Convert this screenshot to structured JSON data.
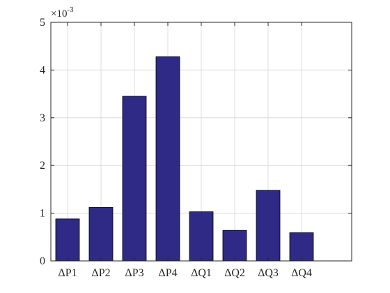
{
  "chart_data": {
    "type": "bar",
    "categories": [
      "ΔP1",
      "ΔP2",
      "ΔP3",
      "ΔP4",
      "ΔQ1",
      "ΔQ2",
      "ΔQ3",
      "ΔQ4"
    ],
    "values": [
      0.00088,
      0.00112,
      0.00345,
      0.00428,
      0.00103,
      0.00064,
      0.00148,
      0.00059
    ],
    "ylim": [
      0,
      0.005
    ],
    "yticks": [
      0,
      0.001,
      0.002,
      0.003,
      0.004,
      0.005
    ],
    "ytick_labels": [
      "0",
      "1",
      "2",
      "3",
      "4",
      "5"
    ],
    "xlim": [
      0.5,
      9.5
    ],
    "exponent_label": {
      "base": "×10",
      "power": "-3"
    },
    "grid": true,
    "bar_color": "#2e2a85",
    "edge_color": "#000000",
    "grid_color": "#dcdcdc",
    "axis_color": "#262626"
  }
}
